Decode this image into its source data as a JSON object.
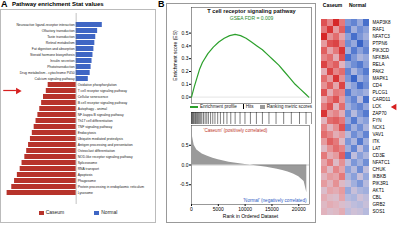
{
  "chart_data": [
    {
      "panel_label": "A",
      "type": "bar",
      "orientation": "horizontal",
      "title": "Pathway enrichment Stat values",
      "categories": [
        "Neuroactive ligand-receptor interaction",
        "Olfactory transduction",
        "Taste transduction",
        "Retinol metabolism",
        "Fat digestion and absorption",
        "Steroid hormone biosynthesis",
        "Insulin secretion",
        "Phototransduction",
        "Drug metabolism - cytochrome P450",
        "Calcium signaling pathway",
        "Oxidative phosphorylation",
        "T cell receptor signaling pathway",
        "Cellular senescence",
        "B cell receptor signaling pathway",
        "Autophagy - animal",
        "NF-kappa B signaling pathway",
        "Th17 cell differentiation",
        "TNF signaling pathway",
        "Endocytosis",
        "Ubiquitin mediated proteolysis",
        "Antigen processing and presentation",
        "Osteoclast differentiation",
        "NOD-like receptor signaling pathway",
        "Spliceosome",
        "RNA transport",
        "Apoptosis",
        "Phagosome",
        "Protein processing in endoplasmic reticulum",
        "Lysosome"
      ],
      "values": [
        2.8,
        2.3,
        2.1,
        2.0,
        1.9,
        1.8,
        1.7,
        1.6,
        1.5,
        1.3,
        -3.0,
        -3.2,
        -3.5,
        -3.7,
        -3.9,
        -4.1,
        -4.3,
        -4.5,
        -4.7,
        -4.9,
        -5.1,
        -5.3,
        -5.5,
        -5.8,
        -6.0,
        -6.3,
        -6.6,
        -6.9,
        -7.4
      ],
      "colors": [
        "#3f66c4",
        "#3f66c4",
        "#3f66c4",
        "#3f66c4",
        "#3f66c4",
        "#3f66c4",
        "#3f66c4",
        "#3f66c4",
        "#3f66c4",
        "#3f66c4",
        "#b7332b",
        "#b7332b",
        "#b7332b",
        "#b7332b",
        "#b7332b",
        "#b7332b",
        "#b7332b",
        "#b7332b",
        "#b7332b",
        "#b7332b",
        "#b7332b",
        "#b7332b",
        "#b7332b",
        "#b7332b",
        "#b7332b",
        "#b7332b",
        "#b7332b",
        "#b7332b",
        "#b7332b"
      ],
      "xlim": [
        -8,
        8.5
      ],
      "tick_labels": false,
      "highlight": "T cell receptor signaling pathway",
      "legend": "bottom",
      "legend_items": [
        {
          "name": "Caseum",
          "color": "#b7332b"
        },
        {
          "name": "Normal",
          "color": "#3f66c4"
        }
      ]
    },
    {
      "panel_label": "B",
      "type": "line",
      "title": "T cell receptor signaling pathway",
      "annotation": "GSEA FDR = 0.009",
      "x": [
        0,
        500,
        1000,
        1500,
        2000,
        3000,
        4000,
        5000,
        6000,
        7000,
        8000,
        9000,
        10000,
        11000,
        12000,
        13000,
        14000,
        15000,
        16000,
        17000,
        18000,
        19000,
        20000,
        21000,
        21500
      ],
      "values": [
        0,
        0.08,
        0.15,
        0.22,
        0.27,
        0.34,
        0.39,
        0.43,
        0.46,
        0.48,
        0.49,
        0.48,
        0.46,
        0.43,
        0.4,
        0.37,
        0.33,
        0.29,
        0.25,
        0.2,
        0.15,
        0.1,
        0.06,
        0.02,
        0
      ],
      "color": "#2ca02c",
      "xlim": [
        0,
        22000
      ],
      "xticks": [
        0,
        5000,
        10000,
        15000,
        20000
      ],
      "ylim": [
        -0.05,
        0.7
      ],
      "yticks": [
        {
          "value": 0,
          "label": "0.0"
        },
        0.1,
        0.2,
        0.3,
        0.4,
        0.5
      ],
      "ylabel": "Enrichment score (ES)",
      "xlabel": "Rank in Ordered Dataset",
      "hits": [
        50,
        150,
        300,
        420,
        600,
        750,
        900,
        1100,
        1300,
        1500,
        1700,
        1900,
        2200,
        2500,
        2800,
        3100,
        3500,
        3900,
        4300,
        4800,
        5300,
        5900,
        6500,
        7200,
        8000,
        8900,
        9800,
        10800,
        11900,
        13000,
        14200,
        15500,
        16900,
        18300,
        19800,
        21000
      ],
      "legend": "bottom",
      "legend_items": [
        {
          "name": "Enrichment profile",
          "color": "#2ca02c"
        },
        {
          "name": "Hits",
          "color": "#000000"
        },
        {
          "name": "Ranking metric scores",
          "color": "#9a9a9a"
        }
      ],
      "ranking_metric": {
        "x": [
          0,
          500,
          1000,
          2000,
          3000,
          4000,
          5000,
          6000,
          7000,
          8000,
          9000,
          10000,
          11000,
          12000,
          13000,
          14000,
          15000,
          16000,
          17000,
          18000,
          19000,
          20000,
          21000,
          21500
        ],
        "values": [
          0.85,
          0.5,
          0.38,
          0.28,
          0.22,
          0.17,
          0.13,
          0.1,
          0.07,
          0.05,
          0.03,
          0.01,
          0,
          -0.02,
          -0.04,
          -0.06,
          -0.08,
          -0.11,
          -0.14,
          -0.18,
          -0.23,
          -0.3,
          -0.42,
          -0.7
        ],
        "color": "#9a9a9a",
        "ylim": [
          -1,
          1
        ],
        "yticks": [
          -0.5,
          {
            "value": 0,
            "label": "0.0"
          },
          0.5
        ],
        "labels": [
          "'Caseum' (positively correlated)",
          "'Normal' (negatively correlated)"
        ]
      }
    },
    {
      "type": "heatmap",
      "columns": [
        "Caseum",
        "Caseum",
        "Caseum",
        "Caseum",
        "Normal",
        "Normal",
        "Normal",
        "Normal"
      ],
      "rows": [
        "MAP3K8",
        "RAF1",
        "NFATC3",
        "PTPN6",
        "PIK3CD",
        "NFKBIA",
        "RELA",
        "PAK2",
        "MAPK1",
        "CD4",
        "PLCG1",
        "CARD11",
        "LCK",
        "ZAP70",
        "FYN",
        "NCK1",
        "VAV1",
        "ITK",
        "LAT",
        "CD3E",
        "NFATC1",
        "CHUK",
        "IKBKB",
        "PIK3R1",
        "AKT1",
        "CBL",
        "GRB2",
        "SOS1"
      ],
      "cells": [
        [
          1.2,
          0.8,
          1.5,
          0.9,
          -0.9,
          -1.1,
          -0.7,
          -1.3
        ],
        [
          0.9,
          1.4,
          0.6,
          1.1,
          -1.2,
          -0.6,
          -1.0,
          -0.8
        ],
        [
          1.5,
          0.7,
          1.0,
          0.5,
          -0.8,
          -1.3,
          -0.9,
          -0.6
        ],
        [
          0.6,
          1.2,
          1.3,
          0.8,
          -1.0,
          -0.7,
          -1.4,
          -0.9
        ],
        [
          1.1,
          0.5,
          0.9,
          1.4,
          -0.6,
          -1.2,
          -0.8,
          -1.1
        ],
        [
          0.8,
          1.0,
          0.4,
          1.2,
          -1.3,
          -0.9,
          -0.5,
          -0.7
        ],
        [
          1.3,
          0.9,
          1.1,
          0.3,
          -0.7,
          -1.0,
          -1.2,
          -0.8
        ],
        [
          0.4,
          1.3,
          0.8,
          1.0,
          -1.1,
          -0.5,
          -0.9,
          -1.2
        ],
        [
          1.0,
          0.6,
          1.4,
          0.7,
          -0.9,
          -1.4,
          -0.6,
          -0.9
        ],
        [
          0.7,
          1.1,
          0.5,
          1.3,
          -0.5,
          -0.8,
          -1.3,
          -1.0
        ],
        [
          1.2,
          0.4,
          0.9,
          0.8,
          -1.2,
          -0.7,
          -0.8,
          -0.6
        ],
        [
          0.5,
          0.9,
          1.2,
          0.6,
          -0.8,
          -1.1,
          -0.4,
          -1.3
        ],
        [
          0.9,
          1.2,
          0.3,
          1.0,
          -0.6,
          -0.9,
          -1.1,
          -0.7
        ],
        [
          1.4,
          0.6,
          0.8,
          0.4,
          -1.0,
          -0.4,
          -0.9,
          -1.2
        ],
        [
          0.3,
          1.0,
          1.1,
          0.9,
          -0.7,
          -1.2,
          -0.6,
          -0.8
        ],
        [
          0.8,
          0.3,
          0.7,
          1.2,
          -1.1,
          -0.6,
          -1.0,
          -0.5
        ],
        [
          1.0,
          0.8,
          0.4,
          0.6,
          -0.4,
          -1.0,
          -0.7,
          -1.1
        ],
        [
          0.6,
          1.1,
          0.9,
          0.2,
          -0.9,
          -0.5,
          -1.2,
          -0.6
        ],
        [
          0.2,
          0.7,
          1.0,
          0.8,
          -0.6,
          -1.1,
          -0.3,
          -0.9
        ],
        [
          0.9,
          0.4,
          0.6,
          1.1,
          -1.2,
          -0.3,
          -0.8,
          -0.5
        ],
        [
          0.5,
          0.9,
          0.2,
          0.7,
          -0.3,
          -0.9,
          -0.6,
          -1.0
        ],
        [
          0.7,
          0.2,
          0.8,
          0.5,
          -0.8,
          -0.4,
          -1.0,
          -0.3
        ],
        [
          0.3,
          0.6,
          0.5,
          0.9,
          -0.5,
          -0.8,
          -0.2,
          -0.7
        ],
        [
          0.6,
          0.3,
          0.7,
          0.2,
          -0.2,
          -0.6,
          -0.9,
          -0.4
        ],
        [
          0.1,
          0.5,
          0.4,
          0.6,
          -0.7,
          -0.2,
          -0.5,
          -0.6
        ],
        [
          0.4,
          0.2,
          0.1,
          0.5,
          -0.4,
          -0.5,
          -0.1,
          -0.3
        ],
        [
          0.2,
          0.4,
          0.3,
          0.1,
          -0.1,
          -0.3,
          -0.4,
          -0.2
        ],
        [
          0.3,
          0.1,
          0.2,
          0.4,
          -0.3,
          -0.1,
          -0.2,
          -0.4
        ]
      ],
      "color_range": [
        -1.5,
        1.5
      ],
      "color_scheme": [
        "#2b59c3",
        "#ffffff",
        "#d62728"
      ],
      "highlight": "LCK"
    }
  ]
}
